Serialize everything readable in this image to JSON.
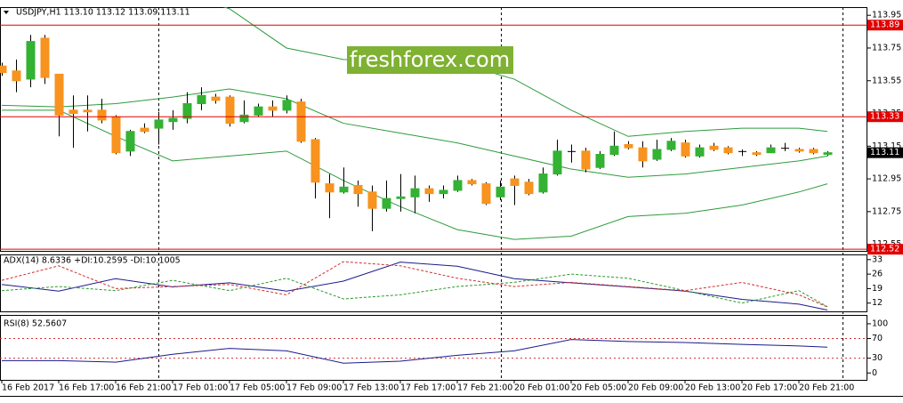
{
  "chart_data": [
    {
      "type": "candlestick",
      "title": "USDJPY,H1  113.10 113.12 113.09 113.11",
      "watermark": "freshforex.com",
      "categories": [
        "16 Feb 2017",
        null,
        null,
        null,
        "16 Feb 17:00",
        null,
        null,
        null,
        "16 Feb 21:00",
        null,
        null,
        null,
        "17 Feb 01:00",
        null,
        null,
        null,
        "17 Feb 05:00",
        null,
        null,
        null,
        "17 Feb 09:00",
        null,
        null,
        null,
        "17 Feb 13:00",
        null,
        null,
        null,
        "17 Feb 17:00",
        null,
        null,
        null,
        "17 Feb 21:00",
        null,
        null,
        null,
        "20 Feb 01:00",
        null,
        null,
        null,
        "20 Feb 05:00",
        null,
        null,
        null,
        "20 Feb 09:00",
        null,
        null,
        null,
        "20 Feb 13:00",
        null,
        null,
        null,
        "20 Feb 17:00",
        null,
        null,
        null,
        "20 Feb 21:00",
        null,
        null
      ],
      "open": [
        113.64,
        113.61,
        113.56,
        113.81,
        113.59,
        113.37,
        113.37,
        113.37,
        113.33,
        113.12,
        113.26,
        113.26,
        113.3,
        113.32,
        113.41,
        113.45,
        113.45,
        113.3,
        113.34,
        113.39,
        113.37,
        113.42,
        113.19,
        112.92,
        112.87,
        112.91,
        112.87,
        112.77,
        112.83,
        112.84,
        112.89,
        112.86,
        112.88,
        112.94,
        112.92,
        112.84,
        112.95,
        112.93,
        112.87,
        112.98,
        113.12,
        113.12,
        113.02,
        113.1,
        113.16,
        113.14,
        113.07,
        113.13,
        113.17,
        113.09,
        113.15,
        113.14,
        113.12,
        113.11,
        113.11,
        113.14,
        113.13,
        113.13,
        113.1
      ],
      "high": [
        113.66,
        113.68,
        113.83,
        113.83,
        113.59,
        113.46,
        113.46,
        113.44,
        113.34,
        113.25,
        113.29,
        113.36,
        113.37,
        113.48,
        113.51,
        113.47,
        113.46,
        113.43,
        113.41,
        113.43,
        113.46,
        113.44,
        113.2,
        112.98,
        113.02,
        112.94,
        112.91,
        112.94,
        112.98,
        112.97,
        112.91,
        112.91,
        112.97,
        112.95,
        112.93,
        112.94,
        112.97,
        112.95,
        113.02,
        113.19,
        113.16,
        113.14,
        113.12,
        113.24,
        113.18,
        113.18,
        113.19,
        113.2,
        113.19,
        113.16,
        113.17,
        113.15,
        113.13,
        113.12,
        113.16,
        113.17,
        113.14,
        113.14,
        113.12
      ],
      "low": [
        113.58,
        113.48,
        113.51,
        113.53,
        113.21,
        113.14,
        113.24,
        113.29,
        113.1,
        113.09,
        113.23,
        113.16,
        113.25,
        113.29,
        113.37,
        113.41,
        113.27,
        113.29,
        113.33,
        113.33,
        113.35,
        113.17,
        112.83,
        112.71,
        112.86,
        112.78,
        112.63,
        112.75,
        112.75,
        112.74,
        112.81,
        112.83,
        112.87,
        112.91,
        112.79,
        112.82,
        112.79,
        112.85,
        112.86,
        112.97,
        113.05,
        112.99,
        113.01,
        113.09,
        113.13,
        113.02,
        113.06,
        113.12,
        113.08,
        113.08,
        113.12,
        113.1,
        113.09,
        113.09,
        113.11,
        113.12,
        113.11,
        113.1,
        113.09
      ],
      "close": [
        113.6,
        113.55,
        113.79,
        113.57,
        113.34,
        113.35,
        113.36,
        113.31,
        113.11,
        113.24,
        113.24,
        113.31,
        113.32,
        113.41,
        113.46,
        113.43,
        113.29,
        113.34,
        113.39,
        113.37,
        113.43,
        113.18,
        112.93,
        112.87,
        112.9,
        112.86,
        112.77,
        112.83,
        112.84,
        112.89,
        112.86,
        112.88,
        112.94,
        112.92,
        112.8,
        112.9,
        112.91,
        112.86,
        112.98,
        113.12,
        113.12,
        113.01,
        113.1,
        113.15,
        113.14,
        113.06,
        113.13,
        113.18,
        113.09,
        113.14,
        113.13,
        113.11,
        113.12,
        113.1,
        113.14,
        113.14,
        113.12,
        113.11,
        113.11
      ],
      "up_color": "#33b233",
      "down_color": "#f7931e",
      "flat_color": "#000000",
      "bands": [
        {
          "color": "#2f9b3c",
          "x": [
            0,
            4,
            8,
            12,
            16,
            20,
            24,
            28,
            32,
            36,
            40,
            44,
            48,
            52,
            56,
            58
          ],
          "values": [
            114.26,
            114.21,
            114.16,
            114.1,
            113.99,
            113.75,
            113.68,
            113.67,
            113.66,
            113.56,
            113.37,
            113.21,
            113.24,
            113.26,
            113.26,
            113.24
          ]
        },
        {
          "color": "#2f9b3c",
          "x": [
            0,
            4,
            8,
            12,
            16,
            20,
            24,
            28,
            32,
            36,
            40,
            44,
            48,
            52,
            56,
            58
          ],
          "values": [
            113.4,
            113.39,
            113.41,
            113.45,
            113.5,
            113.44,
            113.29,
            113.23,
            113.17,
            113.09,
            113.01,
            112.96,
            112.98,
            113.02,
            113.06,
            113.09
          ]
        },
        {
          "color": "#2f9b3c",
          "x": [
            0,
            4,
            8,
            12,
            16,
            20,
            24,
            28,
            32,
            36,
            40,
            44,
            48,
            52,
            56,
            58
          ],
          "values": [
            113.37,
            113.37,
            113.21,
            113.06,
            113.09,
            113.12,
            112.94,
            112.78,
            112.64,
            112.58,
            112.6,
            112.72,
            112.74,
            112.79,
            112.87,
            112.92
          ]
        }
      ],
      "hlines": [
        113.89,
        113.33,
        112.52
      ],
      "hline_color": "#e00000",
      "price": 113.11,
      "price_color": "#000000",
      "ylim": [
        112.51,
        114.0
      ],
      "yticks": [
        113.95,
        113.75,
        113.55,
        113.35,
        113.15,
        112.95,
        112.75,
        112.55
      ]
    },
    {
      "type": "line",
      "title": "ADX(14) 8.6336 +DI:10.2595 -DI:10.1005",
      "x": [
        0,
        4,
        8,
        12,
        16,
        20,
        24,
        28,
        32,
        36,
        40,
        44,
        48,
        52,
        56,
        58
      ],
      "series": [
        {
          "color": "#1a1a8c",
          "dashed": false,
          "values": [
            21,
            17.8,
            23.8,
            19.8,
            21.8,
            17.8,
            22.6,
            31.8,
            29.8,
            23.8,
            21.8,
            19.8,
            17.8,
            13.8,
            11.5,
            8.6336
          ]
        },
        {
          "color": "#2a9a2a",
          "dashed": true,
          "values": [
            18,
            20,
            18,
            23,
            18,
            24,
            14,
            16,
            20,
            22,
            26,
            24,
            18,
            12,
            18,
            10.2595
          ]
        },
        {
          "color": "#d03030",
          "dashed": true,
          "values": [
            23,
            30,
            19,
            20,
            21,
            16,
            32,
            30,
            24,
            20,
            22,
            20,
            18,
            22,
            16,
            10.1005
          ]
        }
      ],
      "ylim": [
        8,
        35.5
      ],
      "yticks": [
        33,
        26,
        19,
        12
      ]
    },
    {
      "type": "line",
      "title": "RSI(8) 52.5607",
      "x": [
        0,
        4,
        8,
        12,
        16,
        20,
        24,
        28,
        32,
        36,
        40,
        44,
        48,
        52,
        56,
        58
      ],
      "series": [
        {
          "color": "#1a1a8c",
          "dashed": false,
          "values": [
            25,
            25,
            22,
            38,
            50,
            45,
            20,
            24,
            36,
            45,
            68,
            64,
            62,
            58,
            55,
            52.5607
          ]
        }
      ],
      "levels": [
        70,
        30
      ],
      "level_color": "#d03030",
      "ylim": [
        -14,
        118
      ],
      "yticks": [
        100,
        70,
        30,
        0
      ]
    }
  ]
}
